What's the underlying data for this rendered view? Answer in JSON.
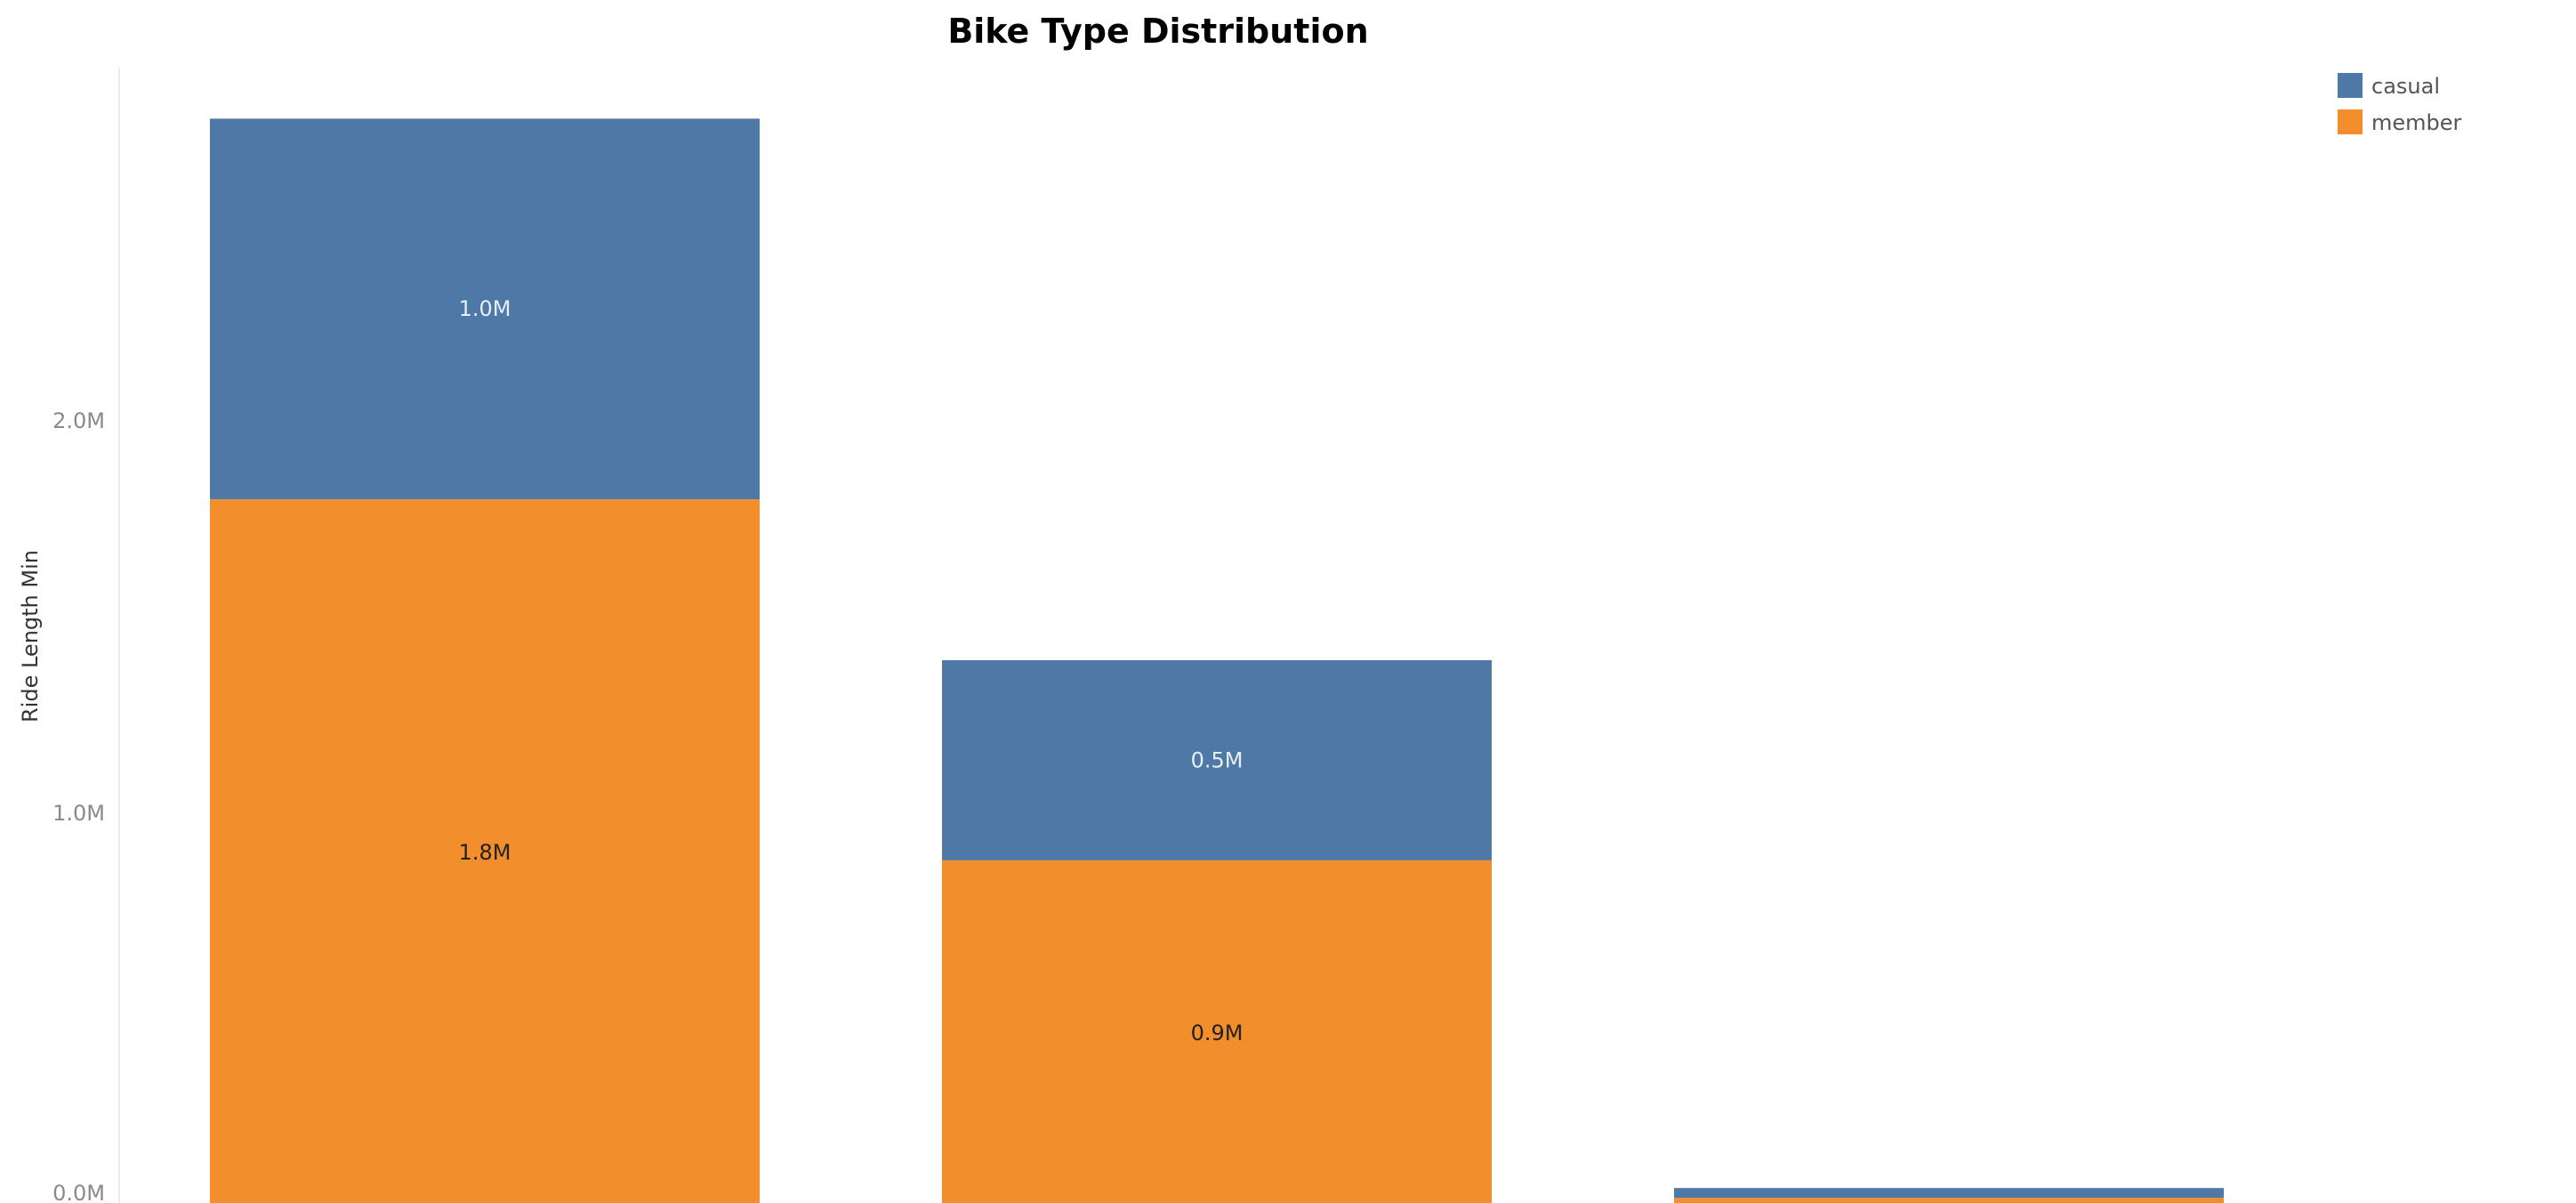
{
  "chart_data": {
    "type": "bar",
    "stacked": true,
    "title": "Bike Type Distribution",
    "xlabel": "",
    "ylabel": "Ride Length Min",
    "categories": [
      "",
      "",
      ""
    ],
    "series": [
      {
        "name": "member",
        "color": "#F28E2B",
        "values": [
          1800000,
          880000,
          20000
        ],
        "labels": [
          "1.8M",
          "0.9M",
          ""
        ],
        "label_color": "#222222"
      },
      {
        "name": "casual",
        "color": "#4E79A7",
        "values": [
          970000,
          510000,
          25000
        ],
        "labels": [
          "1.0M",
          "0.5M",
          ""
        ],
        "label_color": "#e8eef5"
      }
    ],
    "yticks": [
      {
        "value": 0,
        "label": "0.0M"
      },
      {
        "value": 1000000,
        "label": "1.0M"
      },
      {
        "value": 2000000,
        "label": "2.0M"
      }
    ],
    "ylim": [
      0,
      2900000
    ],
    "grid": false,
    "legend": {
      "position": "top-right",
      "entries": [
        "casual",
        "member"
      ]
    }
  }
}
